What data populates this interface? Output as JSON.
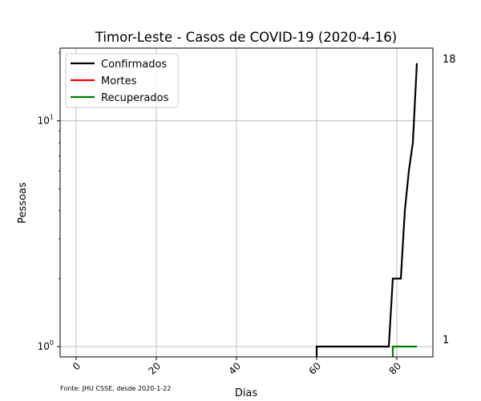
{
  "chart_data": {
    "type": "line",
    "title": "Timor-Leste - Casos de COVID-19 (2020-4-16)",
    "xlabel": "Dias",
    "ylabel": "Pessoas",
    "y_scale": "log",
    "xlim": [
      -4,
      89
    ],
    "ylim": [
      0.9,
      21
    ],
    "x_ticks": [
      0,
      20,
      40,
      60,
      80
    ],
    "y_ticks": [
      {
        "value": 1,
        "base": "10",
        "exp": "0"
      },
      {
        "value": 10,
        "base": "10",
        "exp": "1"
      }
    ],
    "grid": true,
    "legend_position": "top-left",
    "source_note": "Fonte: JHU CSSE, desde 2020-1-22",
    "right_labels": [
      "18",
      "1"
    ],
    "series": [
      {
        "name": "Confirmados",
        "color": "#000000",
        "x": [
          60,
          61,
          78,
          79,
          80,
          81,
          82,
          83,
          84,
          85
        ],
        "y": [
          1,
          1,
          1,
          2,
          2,
          2,
          4,
          6,
          8,
          18
        ]
      },
      {
        "name": "Mortes",
        "color": "#ff0000",
        "x": [],
        "y": []
      },
      {
        "name": "Recuperados",
        "color": "#008000",
        "x": [
          79,
          80,
          85
        ],
        "y": [
          1,
          1,
          1
        ]
      }
    ]
  }
}
